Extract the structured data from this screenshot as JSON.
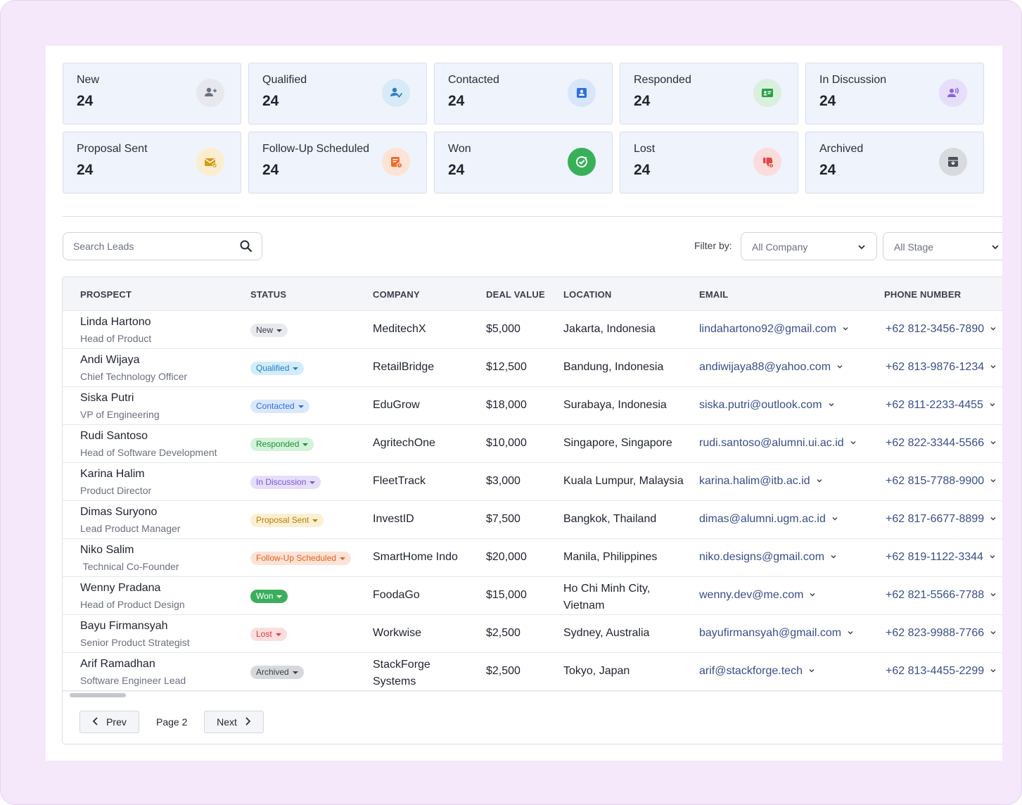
{
  "stats": [
    {
      "label": "New",
      "count": "24",
      "icon": "user-plus-icon",
      "bg": "#e6e8ee",
      "fg": "#6b7080"
    },
    {
      "label": "Qualified",
      "count": "24",
      "icon": "user-check-icon",
      "bg": "#d6eaf8",
      "fg": "#2f7fc1"
    },
    {
      "label": "Contacted",
      "count": "24",
      "icon": "contact-card-icon",
      "bg": "#d8e6fb",
      "fg": "#2f6fe0"
    },
    {
      "label": "Responded",
      "count": "24",
      "icon": "message-reply-icon",
      "bg": "#d9f0dd",
      "fg": "#25a244"
    },
    {
      "label": "In Discussion",
      "count": "24",
      "icon": "user-voice-icon",
      "bg": "#e6defa",
      "fg": "#8a63e3"
    },
    {
      "label": "Proposal Sent",
      "count": "24",
      "icon": "mail-check-icon",
      "bg": "#fbeed0",
      "fg": "#d79a12"
    },
    {
      "label": "Follow-Up Scheduled",
      "count": "24",
      "icon": "calendar-clock-icon",
      "bg": "#fde3d6",
      "fg": "#f06a2a"
    },
    {
      "label": "Won",
      "count": "24",
      "icon": "trophy-check-icon",
      "bg": "#38b05a",
      "fg": "#ffffff"
    },
    {
      "label": "Lost",
      "count": "24",
      "icon": "thumb-down-icon",
      "bg": "#fbdcdc",
      "fg": "#e24848"
    },
    {
      "label": "Archived",
      "count": "24",
      "icon": "archive-icon",
      "bg": "#d8dade",
      "fg": "#4a4f5a"
    }
  ],
  "search": {
    "placeholder": "Search Leads"
  },
  "filter": {
    "label": "Filter by:",
    "company": "All Company",
    "stage": "All Stage"
  },
  "columns": [
    "PROSPECT",
    "STATUS",
    "COMPANY",
    "DEAL VALUE",
    "LOCATION",
    "EMAIL",
    "PHONE NUMBER"
  ],
  "rows": [
    {
      "name": "Linda Hartono",
      "title": "Head of Product",
      "status": "New",
      "company": "MeditechX",
      "deal": "$5,000",
      "location": "Jakarta, Indonesia",
      "email": "lindahartono92@gmail.com",
      "phone": "+62 812-3456-7890"
    },
    {
      "name": "Andi Wijaya",
      "title": "Chief Technology Officer",
      "status": "Qualified",
      "company": "RetailBridge",
      "deal": "$12,500",
      "location": "Bandung, Indonesia",
      "email": "andiwijaya88@yahoo.com",
      "phone": "+62 813-9876-1234"
    },
    {
      "name": "Siska Putri",
      "title": "VP of Engineering",
      "status": "Contacted",
      "company": "EduGrow",
      "deal": "$18,000",
      "location": "Surabaya, Indonesia",
      "email": "siska.putri@outlook.com",
      "phone": "+62 811-2233-4455"
    },
    {
      "name": "Rudi Santoso",
      "title": "Head of Software Development",
      "status": "Responded",
      "company": "AgritechOne",
      "deal": "$10,000",
      "location": "Singapore, Singapore",
      "email": "rudi.santoso@alumni.ui.ac.id",
      "phone": "+62 822-3344-5566"
    },
    {
      "name": "Karina Halim",
      "title": "Product Director",
      "status": "In Discussion",
      "company": "FleetTrack",
      "deal": "$3,000",
      "location": "Kuala Lumpur, Malaysia",
      "email": "karina.halim@itb.ac.id",
      "phone": "+62 815-7788-9900"
    },
    {
      "name": "Dimas Suryono",
      "title": "Lead Product Manager",
      "status": "Proposal Sent",
      "company": "InvestID",
      "deal": "$7,500",
      "location": "Bangkok, Thailand",
      "email": "dimas@alumni.ugm.ac.id",
      "phone": "+62 817-6677-8899"
    },
    {
      "name": "Niko Salim",
      "title": " Technical Co-Founder",
      "status": "Follow-Up Scheduled",
      "company": "SmartHome Indo",
      "deal": "$20,000",
      "location": "Manila, Philippines",
      "email": "niko.designs@gmail.com",
      "phone": "+62 819-1122-3344"
    },
    {
      "name": "Wenny Pradana",
      "title": "Head of Product Design",
      "status": "Won",
      "company": "FoodaGo",
      "deal": "$15,000",
      "location": "Ho Chi Minh City, Vietnam",
      "email": "wenny.dev@me.com",
      "phone": "+62 821-5566-7788"
    },
    {
      "name": "Bayu Firmansyah",
      "title": "Senior Product Strategist",
      "status": "Lost",
      "company": "Workwise",
      "deal": "$2,500",
      "location": "Sydney, Australia",
      "email": "bayufirmansyah@gmail.com",
      "phone": "+62 823-9988-7766"
    },
    {
      "name": "Arif Ramadhan",
      "title": "Software Engineer Lead",
      "status": "Archived",
      "company": "StackForge Systems",
      "deal": "$2,500",
      "location": "Tokyo, Japan",
      "email": "arif@stackforge.tech",
      "phone": "+62 813-4455-2299"
    }
  ],
  "status_colors": {
    "New": {
      "bg": "#e8e9ec",
      "fg": "#3a3f4c"
    },
    "Qualified": {
      "bg": "#d3ecfb",
      "fg": "#1f7fc4"
    },
    "Contacted": {
      "bg": "#dbe8fc",
      "fg": "#2f6fe0"
    },
    "Responded": {
      "bg": "#d3f2d8",
      "fg": "#1e8f3c"
    },
    "In Discussion": {
      "bg": "#e6defa",
      "fg": "#7a55d8"
    },
    "Proposal Sent": {
      "bg": "#fcefd2",
      "fg": "#b47d08"
    },
    "Follow-Up Scheduled": {
      "bg": "#fde3d6",
      "fg": "#e0621f"
    },
    "Won": {
      "bg": "#3cae5c",
      "fg": "#ffffff"
    },
    "Lost": {
      "bg": "#fcdede",
      "fg": "#d93b3b"
    },
    "Archived": {
      "bg": "#d6d8dc",
      "fg": "#3a3f4c"
    }
  },
  "pagination": {
    "prev": "Prev",
    "page": "Page 2",
    "next": "Next"
  }
}
